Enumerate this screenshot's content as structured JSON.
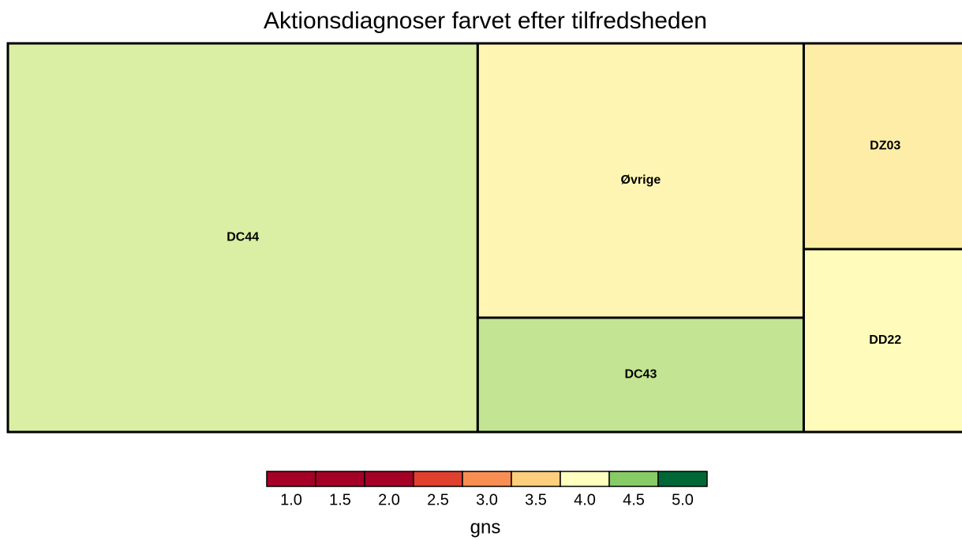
{
  "chart_data": {
    "type": "treemap",
    "title": "Aktionsdiagnoser farvet efter tilfredsheden",
    "categories": [
      "DC44",
      "Øvrige",
      "DC43",
      "DZ03",
      "DD22"
    ],
    "values": [
      49,
      24,
      10,
      9,
      8
    ],
    "color_values": [
      4.15,
      3.9,
      4.25,
      3.82,
      3.97
    ],
    "legend": {
      "title": "gns",
      "ticks": [
        {
          "value": 1,
          "label": "1.0"
        },
        {
          "value": 1.5,
          "label": "1.5"
        },
        {
          "value": 2,
          "label": "2.0"
        },
        {
          "value": 2.5,
          "label": "2.5"
        },
        {
          "value": 3,
          "label": "3.0"
        },
        {
          "value": 3.5,
          "label": "3.5"
        },
        {
          "value": 4,
          "label": "4.0"
        },
        {
          "value": 4.5,
          "label": "4.5"
        },
        {
          "value": 5,
          "label": "5.0"
        }
      ],
      "colors": [
        "#a50026",
        "#a50026",
        "#a50026",
        "#e0402e",
        "#f98e52",
        "#fdce7c",
        "#ffffbf",
        "#86cb66",
        "#006837"
      ]
    }
  }
}
